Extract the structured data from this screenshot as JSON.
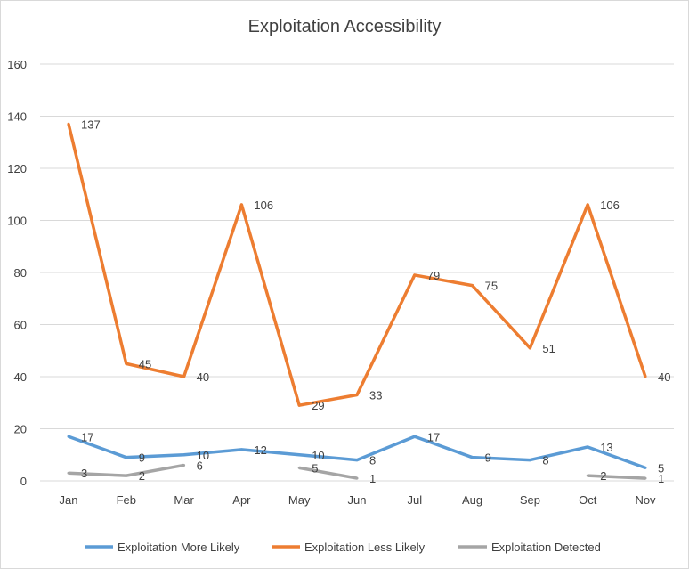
{
  "chart_data": {
    "type": "line",
    "title": "Exploitation Accessibility",
    "categories": [
      "Jan",
      "Feb",
      "Mar",
      "Apr",
      "May",
      "Jun",
      "Jul",
      "Aug",
      "Sep",
      "Oct",
      "Nov"
    ],
    "ylim": [
      0,
      160
    ],
    "yticks": [
      0,
      20,
      40,
      60,
      80,
      100,
      120,
      140,
      160
    ],
    "grid": true,
    "legend": "bottom",
    "series": [
      {
        "name": "Exploitation More Likely",
        "color": "#5b9bd5",
        "values": [
          17,
          9,
          10,
          12,
          10,
          8,
          17,
          9,
          8,
          13,
          5
        ]
      },
      {
        "name": "Exploitation Less Likely",
        "color": "#ed7d31",
        "values": [
          137,
          45,
          40,
          106,
          29,
          33,
          79,
          75,
          51,
          106,
          40
        ]
      },
      {
        "name": "Exploitation Detected",
        "color": "#a5a5a5",
        "values": [
          3,
          2,
          6,
          null,
          5,
          1,
          null,
          null,
          null,
          2,
          1
        ]
      }
    ]
  }
}
